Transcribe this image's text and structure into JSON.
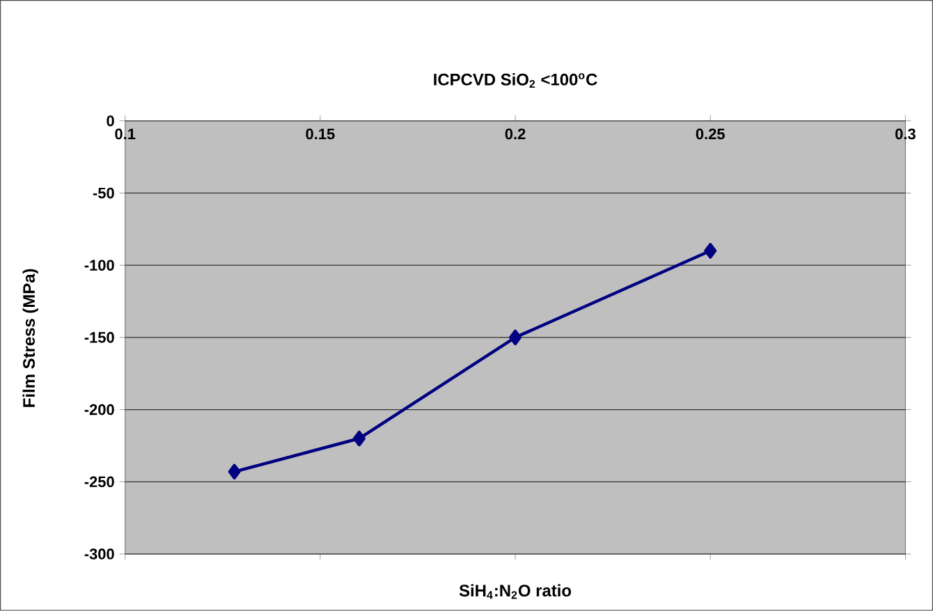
{
  "chart_data": {
    "type": "line",
    "title": "ICPCVD SiO$_{2}$ <100$^{o}$C",
    "xlabel": "SiH$_{4}$:N$_{2}$O ratio",
    "ylabel": "Film Stress (MPa)",
    "x": [
      0.128,
      0.16,
      0.2,
      0.25
    ],
    "series": [
      {
        "color": "#000080",
        "values": [
          -243,
          -220,
          -150,
          -90
        ]
      }
    ],
    "xlim": [
      0.1,
      0.3
    ],
    "xticks": [
      0.1,
      0.15,
      0.2,
      0.25,
      0.3
    ],
    "ylim": [
      -300,
      0
    ],
    "yticks": [
      0,
      -50,
      -100,
      -150,
      -200,
      -250,
      -300
    ],
    "grid": "y",
    "marker": "diamond",
    "line_style": "solid"
  }
}
